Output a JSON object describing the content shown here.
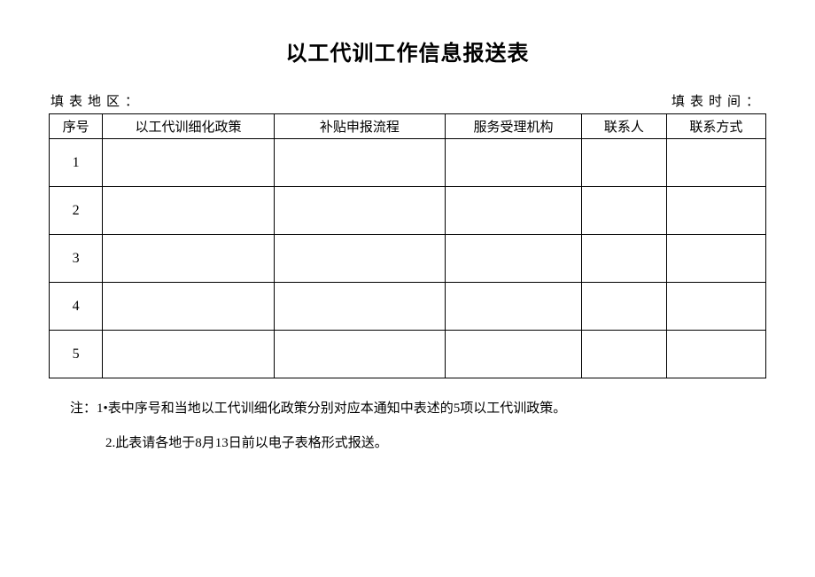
{
  "title": "以工代训工作信息报送表",
  "meta": {
    "region_label": "填表地区：",
    "time_label": "填表时间："
  },
  "table": {
    "columns": [
      "序号",
      "以工代训细化政策",
      "补贴申报流程",
      "服务受理机构",
      "联系人",
      "联系方式"
    ],
    "rows": [
      {
        "seq": "1",
        "policy": "",
        "process": "",
        "agency": "",
        "contact": "",
        "phone": ""
      },
      {
        "seq": "2",
        "policy": "",
        "process": "",
        "agency": "",
        "contact": "",
        "phone": ""
      },
      {
        "seq": "3",
        "policy": "",
        "process": "",
        "agency": "",
        "contact": "",
        "phone": ""
      },
      {
        "seq": "4",
        "policy": "",
        "process": "",
        "agency": "",
        "contact": "",
        "phone": ""
      },
      {
        "seq": "5",
        "policy": "",
        "process": "",
        "agency": "",
        "contact": "",
        "phone": ""
      }
    ]
  },
  "notes": {
    "line1": "注：1•表中序号和当地以工代训细化政策分别对应本通知中表述的5项以工代训政策。",
    "line2": "2.此表请各地于8月13日前以电子表格形式报送。"
  }
}
